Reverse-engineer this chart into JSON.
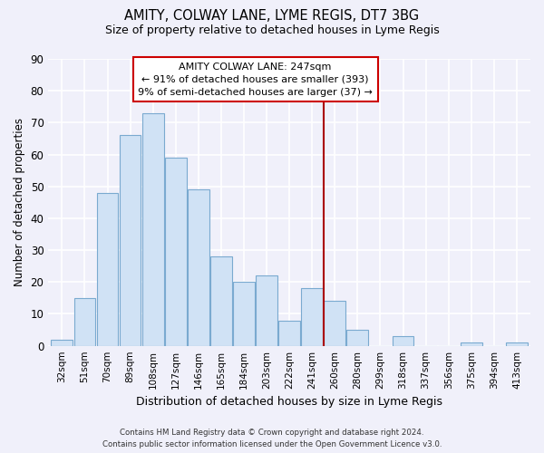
{
  "title": "AMITY, COLWAY LANE, LYME REGIS, DT7 3BG",
  "subtitle": "Size of property relative to detached houses in Lyme Regis",
  "xlabel": "Distribution of detached houses by size in Lyme Regis",
  "ylabel": "Number of detached properties",
  "categories": [
    "32sqm",
    "51sqm",
    "70sqm",
    "89sqm",
    "108sqm",
    "127sqm",
    "146sqm",
    "165sqm",
    "184sqm",
    "203sqm",
    "222sqm",
    "241sqm",
    "260sqm",
    "280sqm",
    "299sqm",
    "318sqm",
    "337sqm",
    "356sqm",
    "375sqm",
    "394sqm",
    "413sqm"
  ],
  "values": [
    2,
    15,
    48,
    66,
    73,
    59,
    49,
    28,
    20,
    22,
    8,
    18,
    14,
    5,
    0,
    3,
    0,
    0,
    1,
    0,
    1
  ],
  "bar_color": "#d0e2f5",
  "bar_edge_color": "#7aaad0",
  "vline_x_index": 11.5,
  "vline_color": "#aa0000",
  "annotation_title": "AMITY COLWAY LANE: 247sqm",
  "annotation_line1": "← 91% of detached houses are smaller (393)",
  "annotation_line2": "9% of semi-detached houses are larger (37) →",
  "annotation_box_color": "#ffffff",
  "annotation_box_edge": "#cc0000",
  "ylim": [
    0,
    90
  ],
  "yticks": [
    0,
    10,
    20,
    30,
    40,
    50,
    60,
    70,
    80,
    90
  ],
  "footer_line1": "Contains HM Land Registry data © Crown copyright and database right 2024.",
  "footer_line2": "Contains public sector information licensed under the Open Government Licence v3.0.",
  "background_color": "#f0f0fa"
}
